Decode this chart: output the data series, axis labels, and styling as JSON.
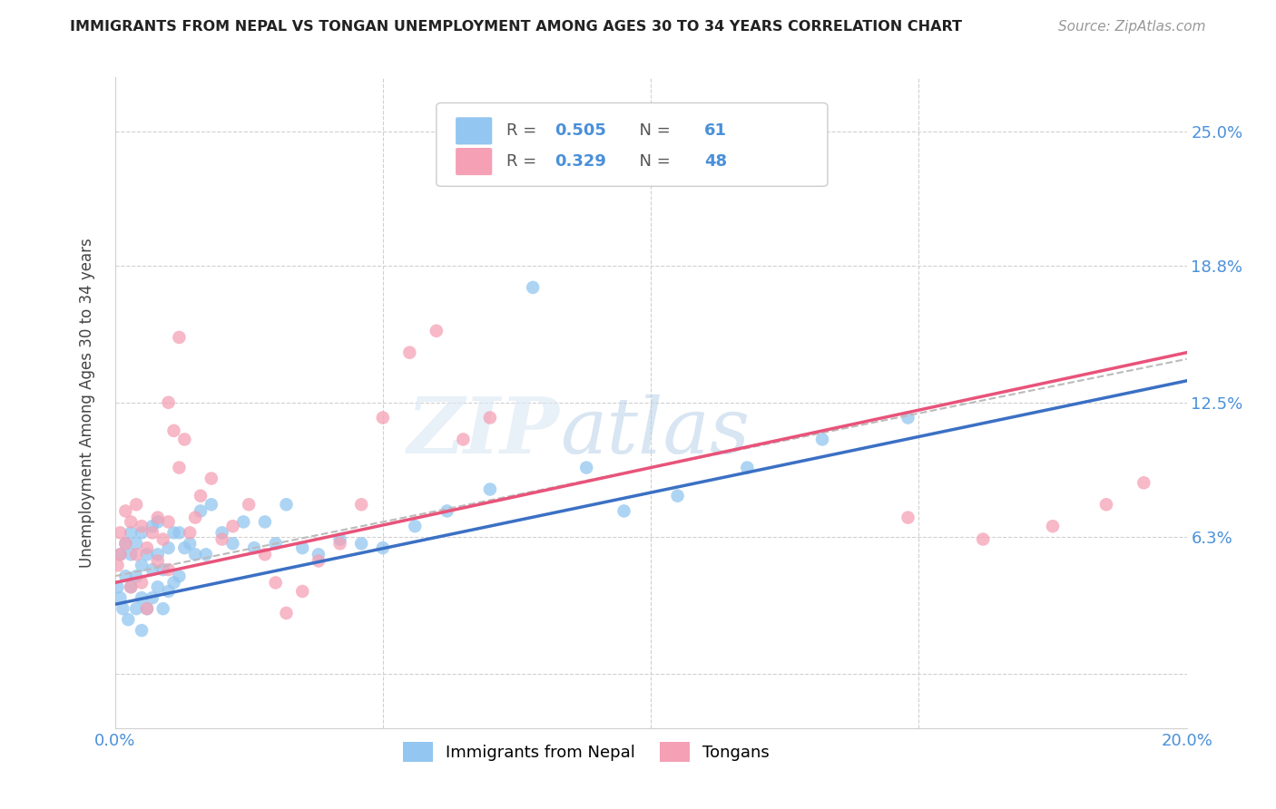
{
  "title": "IMMIGRANTS FROM NEPAL VS TONGAN UNEMPLOYMENT AMONG AGES 30 TO 34 YEARS CORRELATION CHART",
  "source": "Source: ZipAtlas.com",
  "ylabel": "Unemployment Among Ages 30 to 34 years",
  "xlim": [
    0.0,
    0.2
  ],
  "ylim": [
    -0.025,
    0.275
  ],
  "yticks": [
    0.0,
    0.063,
    0.125,
    0.188,
    0.25
  ],
  "ytick_labels": [
    "",
    "6.3%",
    "12.5%",
    "18.8%",
    "25.0%"
  ],
  "xticks": [
    0.0,
    0.05,
    0.1,
    0.15,
    0.2
  ],
  "xtick_labels": [
    "0.0%",
    "",
    "",
    "",
    "20.0%"
  ],
  "nepal_R": 0.505,
  "nepal_N": 61,
  "tongan_R": 0.329,
  "tongan_N": 48,
  "nepal_color": "#93C6F0",
  "tongan_color": "#F5A0B5",
  "nepal_line_color": "#3B70C4",
  "tongan_line_color": "#E8537A",
  "nepal_label": "Immigrants from Nepal",
  "tongan_label": "Tongans",
  "watermark_zip": "ZIP",
  "watermark_atlas": "atlas",
  "background_color": "#ffffff",
  "grid_color": "#d0d0d0",
  "right_label_color": "#4A90D9",
  "title_color": "#222222",
  "source_color": "#999999",
  "nepal_x": [
    0.0005,
    0.001,
    0.001,
    0.0015,
    0.002,
    0.002,
    0.0025,
    0.003,
    0.003,
    0.003,
    0.004,
    0.004,
    0.004,
    0.005,
    0.005,
    0.005,
    0.005,
    0.006,
    0.006,
    0.007,
    0.007,
    0.007,
    0.008,
    0.008,
    0.008,
    0.009,
    0.009,
    0.01,
    0.01,
    0.011,
    0.011,
    0.012,
    0.012,
    0.013,
    0.014,
    0.015,
    0.016,
    0.017,
    0.018,
    0.02,
    0.022,
    0.024,
    0.026,
    0.028,
    0.03,
    0.032,
    0.035,
    0.038,
    0.042,
    0.046,
    0.05,
    0.056,
    0.062,
    0.07,
    0.078,
    0.088,
    0.095,
    0.105,
    0.118,
    0.132,
    0.148
  ],
  "nepal_y": [
    0.04,
    0.035,
    0.055,
    0.03,
    0.045,
    0.06,
    0.025,
    0.04,
    0.055,
    0.065,
    0.03,
    0.045,
    0.06,
    0.02,
    0.035,
    0.05,
    0.065,
    0.03,
    0.055,
    0.035,
    0.048,
    0.068,
    0.04,
    0.055,
    0.07,
    0.03,
    0.048,
    0.038,
    0.058,
    0.042,
    0.065,
    0.045,
    0.065,
    0.058,
    0.06,
    0.055,
    0.075,
    0.055,
    0.078,
    0.065,
    0.06,
    0.07,
    0.058,
    0.07,
    0.06,
    0.078,
    0.058,
    0.055,
    0.062,
    0.06,
    0.058,
    0.068,
    0.075,
    0.085,
    0.178,
    0.095,
    0.075,
    0.082,
    0.095,
    0.108,
    0.118
  ],
  "tongan_x": [
    0.0005,
    0.001,
    0.001,
    0.002,
    0.002,
    0.003,
    0.003,
    0.004,
    0.004,
    0.005,
    0.005,
    0.006,
    0.006,
    0.007,
    0.008,
    0.008,
    0.009,
    0.01,
    0.01,
    0.011,
    0.012,
    0.013,
    0.014,
    0.015,
    0.016,
    0.018,
    0.02,
    0.022,
    0.025,
    0.028,
    0.03,
    0.032,
    0.035,
    0.038,
    0.042,
    0.046,
    0.05,
    0.055,
    0.06,
    0.065,
    0.07,
    0.148,
    0.162,
    0.175,
    0.185,
    0.192,
    0.01,
    0.012
  ],
  "tongan_y": [
    0.05,
    0.055,
    0.065,
    0.06,
    0.075,
    0.04,
    0.07,
    0.055,
    0.078,
    0.042,
    0.068,
    0.03,
    0.058,
    0.065,
    0.052,
    0.072,
    0.062,
    0.048,
    0.07,
    0.112,
    0.095,
    0.108,
    0.065,
    0.072,
    0.082,
    0.09,
    0.062,
    0.068,
    0.078,
    0.055,
    0.042,
    0.028,
    0.038,
    0.052,
    0.06,
    0.078,
    0.118,
    0.148,
    0.158,
    0.108,
    0.118,
    0.072,
    0.062,
    0.068,
    0.078,
    0.088,
    0.125,
    0.155
  ],
  "nepal_line_x0": 0.0,
  "nepal_line_y0": 0.032,
  "nepal_line_x1": 0.2,
  "nepal_line_y1": 0.135,
  "tongan_line_x0": 0.0,
  "tongan_line_y0": 0.042,
  "tongan_line_x1": 0.2,
  "tongan_line_y1": 0.148,
  "dash_line_x0": 0.0,
  "dash_line_y0": 0.045,
  "dash_line_x1": 0.2,
  "dash_line_y1": 0.145
}
